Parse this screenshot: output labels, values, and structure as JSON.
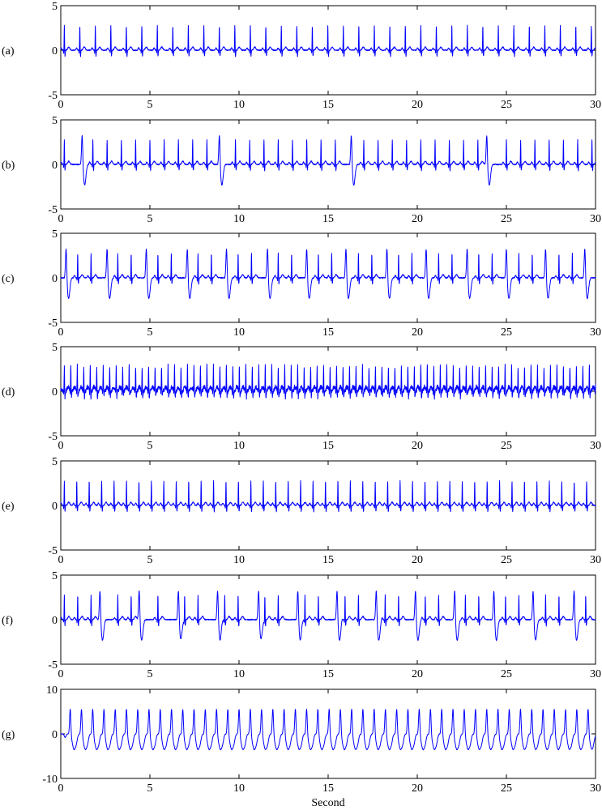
{
  "chart_data": [
    {
      "type": "line",
      "panel_label": "(a)",
      "series": [
        {
          "pattern": "normal-sinus-rhythm",
          "rate_bpm": 69,
          "r_peak": 2.8
        }
      ],
      "xlim": [
        0,
        30
      ],
      "ylim": [
        -5,
        5
      ],
      "xticks": [
        0,
        5,
        10,
        15,
        20,
        25,
        30
      ],
      "yticks": [
        -5,
        0,
        5
      ],
      "color": "#0000ff"
    },
    {
      "type": "line",
      "panel_label": "(b)",
      "series": [
        {
          "pattern": "sinus-rhythm-with-occasional-ectopic-beats",
          "rate_bpm": 75,
          "r_peak": 2.8,
          "ectopic_beats_s": [
            1.2,
            8.9,
            16.3,
            23.9
          ]
        }
      ],
      "xlim": [
        0,
        30
      ],
      "ylim": [
        -5,
        5
      ],
      "xticks": [
        0,
        5,
        10,
        15,
        20,
        25,
        30
      ],
      "yticks": [
        -5,
        0,
        5
      ],
      "color": "#0000ff"
    },
    {
      "type": "line",
      "panel_label": "(c)",
      "series": [
        {
          "pattern": "frequent-ectopic-beats",
          "rate_bpm": 80,
          "r_peak": 2.8,
          "ectopic_beats_s": [
            0.3,
            2.6,
            4.8,
            7.1,
            9.3,
            11.6,
            13.8,
            16.0,
            18.3,
            20.5,
            22.8,
            25.0,
            27.2,
            29.4
          ]
        }
      ],
      "xlim": [
        0,
        30
      ],
      "ylim": [
        -5,
        5
      ],
      "xticks": [
        0,
        5,
        10,
        15,
        20,
        25,
        30
      ],
      "yticks": [
        -5,
        0,
        5
      ],
      "color": "#0000ff"
    },
    {
      "type": "line",
      "panel_label": "(d)",
      "series": [
        {
          "pattern": "tachycardia",
          "rate_bpm": 165,
          "r_peak": 2.8
        }
      ],
      "xlim": [
        0,
        30
      ],
      "ylim": [
        -5,
        5
      ],
      "xticks": [
        0,
        5,
        10,
        15,
        20,
        25,
        30
      ],
      "yticks": [
        -5,
        0,
        5
      ],
      "color": "#0000ff"
    },
    {
      "type": "line",
      "panel_label": "(e)",
      "series": [
        {
          "pattern": "normal-sinus-rhythm",
          "rate_bpm": 86,
          "r_peak": 2.8
        }
      ],
      "xlim": [
        0,
        30
      ],
      "ylim": [
        -5,
        5
      ],
      "xticks": [
        0,
        5,
        10,
        15,
        20,
        25,
        30
      ],
      "yticks": [
        -5,
        0,
        5
      ],
      "color": "#0000ff"
    },
    {
      "type": "line",
      "panel_label": "(f)",
      "series": [
        {
          "pattern": "bigeminy",
          "rate_bpm": 80,
          "r_peak": 2.8,
          "ectopic_beats_s": [
            2.2,
            4.4,
            6.6,
            8.8,
            11.1,
            13.3,
            15.5,
            17.7,
            19.9,
            22.1,
            24.3,
            26.5,
            28.8
          ]
        }
      ],
      "xlim": [
        0,
        30
      ],
      "ylim": [
        -5,
        5
      ],
      "xticks": [
        0,
        5,
        10,
        15,
        20,
        25,
        30
      ],
      "yticks": [
        -5,
        0,
        5
      ],
      "color": "#0000ff"
    },
    {
      "type": "line",
      "panel_label": "(g)",
      "series": [
        {
          "pattern": "wide-complex-rhythm",
          "rate_bpm": 95,
          "peak": 5.8,
          "trough": -3.5
        }
      ],
      "xlim": [
        0,
        30
      ],
      "ylim": [
        -10,
        10
      ],
      "xticks": [
        0,
        5,
        10,
        15,
        20,
        25,
        30
      ],
      "yticks": [
        -10,
        0,
        10
      ],
      "color": "#0000ff"
    }
  ],
  "xlabel": "Second"
}
